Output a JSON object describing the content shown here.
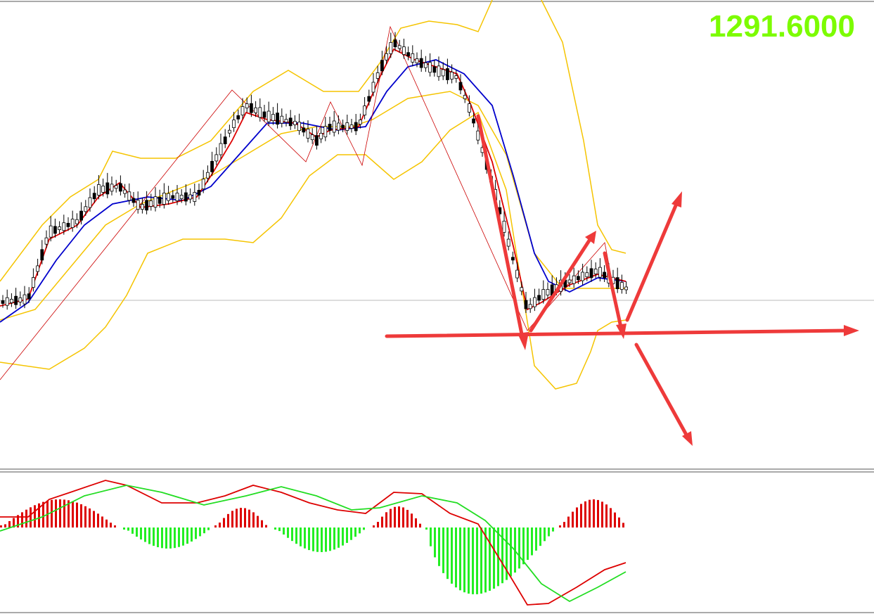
{
  "price_label": "1291.6000"
}
